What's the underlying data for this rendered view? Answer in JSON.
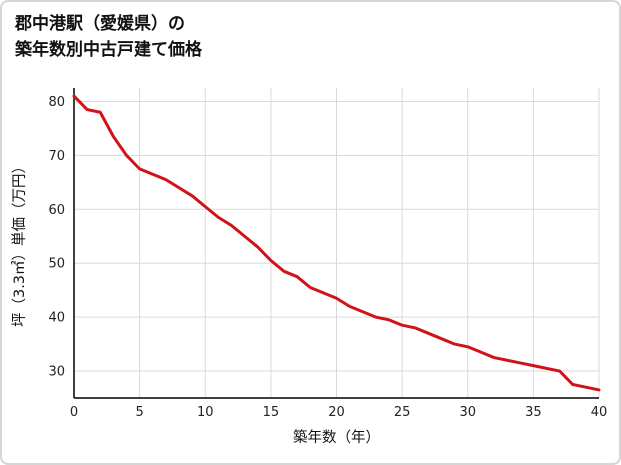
{
  "title": {
    "line1": "郡中港駅（愛媛県）の",
    "line2": "築年数別中古戸建て価格"
  },
  "chart_data": {
    "type": "line",
    "title": "郡中港駅（愛媛県）の築年数別中古戸建て価格",
    "xlabel": "築年数（年）",
    "ylabel": "坪（3.3㎡）単価（万円）",
    "x": [
      0,
      1,
      2,
      3,
      4,
      5,
      6,
      7,
      8,
      9,
      10,
      11,
      12,
      13,
      14,
      15,
      16,
      17,
      18,
      19,
      20,
      21,
      22,
      23,
      24,
      25,
      26,
      27,
      28,
      29,
      30,
      31,
      32,
      33,
      34,
      35,
      36,
      37,
      38,
      39,
      40
    ],
    "values": [
      81,
      78.5,
      78,
      73.5,
      70,
      67.5,
      66.5,
      65.5,
      64,
      62.5,
      60.5,
      58.5,
      57,
      55,
      53,
      50.5,
      48.5,
      47.5,
      45.5,
      44.5,
      43.5,
      42,
      41,
      40,
      39.5,
      38.5,
      38,
      37,
      36,
      35,
      34.5,
      33.5,
      32.5,
      32,
      31.5,
      31,
      30.5,
      30,
      27.5,
      27,
      26.5
    ],
    "xlim": [
      0,
      40
    ],
    "ylim": [
      25,
      82.5
    ],
    "xticks": [
      0,
      5,
      10,
      15,
      20,
      25,
      30,
      35,
      40
    ],
    "yticks": [
      30,
      40,
      50,
      60,
      70,
      80
    ],
    "grid": true,
    "legend": "none",
    "line_color": "#cf1318",
    "grid_color": "#d9d9d9",
    "axis_color": "#000000",
    "tick_label_color": "#222222"
  }
}
